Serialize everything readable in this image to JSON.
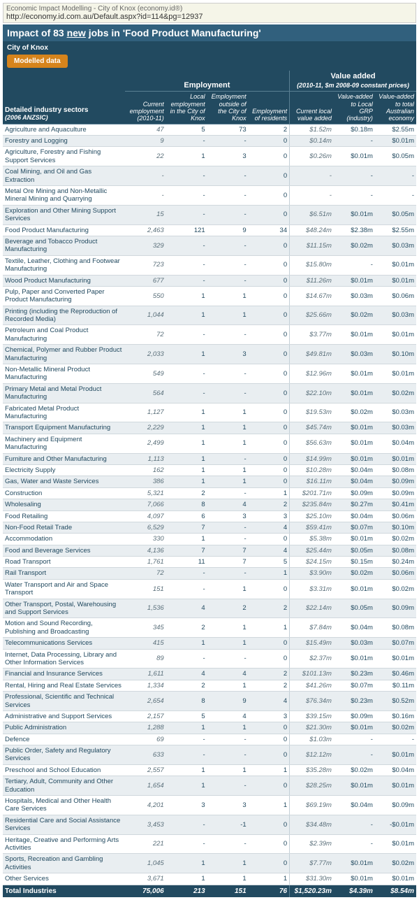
{
  "url_bar": {
    "top": "Economic Impact Modelling - City of Knox (economy.id®)",
    "url": "http://economy.id.com.au/Default.aspx?id=114&pg=12937"
  },
  "title": {
    "prefix": "Impact of ",
    "count": "83",
    "new_word": "new",
    "suffix": " jobs in 'Food Product Manufacturing'"
  },
  "city_label": "City of Knox",
  "modelled_label": "Modelled data",
  "colors": {
    "header_bg": "#224a60",
    "accent": "#d6841c",
    "row_alt": "#e9eef1"
  },
  "headers": {
    "sector": "Detailed industry sectors",
    "sector_sub": "(2006 ANZSIC)",
    "emp_group": "Employment",
    "val_group": "Value added",
    "val_group_sub": "(2010-11, $m 2008-09 constant prices)",
    "cols": [
      "Current employment (2010-11)",
      "Local employment in the City of Knox",
      "Employment outside of the City of Knox",
      "Employment of residents",
      "Current local value added",
      "Value-added to Local GRP (industry)",
      "Value-added to total Australian economy"
    ]
  },
  "totals": {
    "label": "Total Industries",
    "cells": [
      "75,006",
      "213",
      "151",
      "76",
      "$1,520.23m",
      "$4.39m",
      "$8.54m"
    ]
  },
  "rows": [
    {
      "sector": "Agriculture and Aquaculture",
      "c": [
        "47",
        "5",
        "73",
        "2",
        "$1.52m",
        "$0.18m",
        "$2.55m"
      ]
    },
    {
      "sector": "Forestry and Logging",
      "c": [
        "9",
        "-",
        "-",
        "0",
        "$0.14m",
        "-",
        "$0.01m"
      ]
    },
    {
      "sector": "Agriculture, Forestry and Fishing Support Services",
      "c": [
        "22",
        "1",
        "3",
        "0",
        "$0.26m",
        "$0.01m",
        "$0.05m"
      ]
    },
    {
      "sector": "Coal Mining, and Oil and Gas Extraction",
      "c": [
        "-",
        "-",
        "-",
        "0",
        "-",
        "-",
        "-"
      ]
    },
    {
      "sector": "Metal Ore Mining and Non-Metallic Mineral Mining and Quarrying",
      "c": [
        "-",
        "-",
        "-",
        "0",
        "-",
        "-",
        "-"
      ]
    },
    {
      "sector": "Exploration and Other Mining Support Services",
      "c": [
        "15",
        "-",
        "-",
        "0",
        "$6.51m",
        "$0.01m",
        "$0.05m"
      ]
    },
    {
      "sector": "Food Product Manufacturing",
      "c": [
        "2,463",
        "121",
        "9",
        "34",
        "$48.24m",
        "$2.38m",
        "$2.55m"
      ]
    },
    {
      "sector": "Beverage and Tobacco Product Manufacturing",
      "c": [
        "329",
        "-",
        "-",
        "0",
        "$11.15m",
        "$0.02m",
        "$0.03m"
      ]
    },
    {
      "sector": "Textile, Leather, Clothing and Footwear Manufacturing",
      "c": [
        "723",
        "-",
        "-",
        "0",
        "$15.80m",
        "-",
        "$0.01m"
      ]
    },
    {
      "sector": "Wood Product Manufacturing",
      "c": [
        "677",
        "-",
        "-",
        "0",
        "$11.26m",
        "$0.01m",
        "$0.01m"
      ]
    },
    {
      "sector": "Pulp, Paper and Converted Paper Product Manufacturing",
      "c": [
        "550",
        "1",
        "1",
        "0",
        "$14.67m",
        "$0.03m",
        "$0.06m"
      ]
    },
    {
      "sector": "Printing (including the Reproduction of Recorded Media)",
      "c": [
        "1,044",
        "1",
        "1",
        "0",
        "$25.66m",
        "$0.02m",
        "$0.03m"
      ]
    },
    {
      "sector": "Petroleum and Coal Product Manufacturing",
      "c": [
        "72",
        "-",
        "-",
        "0",
        "$3.77m",
        "$0.01m",
        "$0.01m"
      ]
    },
    {
      "sector": "Chemical, Polymer and Rubber Product Manufacturing",
      "c": [
        "2,033",
        "1",
        "3",
        "0",
        "$49.81m",
        "$0.03m",
        "$0.10m"
      ]
    },
    {
      "sector": "Non-Metallic Mineral Product Manufacturing",
      "c": [
        "549",
        "-",
        "-",
        "0",
        "$12.96m",
        "$0.01m",
        "$0.01m"
      ]
    },
    {
      "sector": "Primary Metal and Metal Product Manufacturing",
      "c": [
        "564",
        "-",
        "-",
        "0",
        "$22.10m",
        "$0.01m",
        "$0.02m"
      ]
    },
    {
      "sector": "Fabricated Metal Product Manufacturing",
      "c": [
        "1,127",
        "1",
        "1",
        "0",
        "$19.53m",
        "$0.02m",
        "$0.03m"
      ]
    },
    {
      "sector": "Transport Equipment Manufacturing",
      "c": [
        "2,229",
        "1",
        "1",
        "0",
        "$45.74m",
        "$0.01m",
        "$0.03m"
      ]
    },
    {
      "sector": "Machinery and Equipment Manufacturing",
      "c": [
        "2,499",
        "1",
        "1",
        "0",
        "$56.63m",
        "$0.01m",
        "$0.04m"
      ]
    },
    {
      "sector": "Furniture and Other Manufacturing",
      "c": [
        "1,113",
        "1",
        "-",
        "0",
        "$14.99m",
        "$0.01m",
        "$0.01m"
      ]
    },
    {
      "sector": "Electricity Supply",
      "c": [
        "162",
        "1",
        "1",
        "0",
        "$10.28m",
        "$0.04m",
        "$0.08m"
      ]
    },
    {
      "sector": "Gas, Water and Waste Services",
      "c": [
        "386",
        "1",
        "1",
        "0",
        "$16.11m",
        "$0.04m",
        "$0.09m"
      ]
    },
    {
      "sector": "Construction",
      "c": [
        "5,321",
        "2",
        "-",
        "1",
        "$201.71m",
        "$0.09m",
        "$0.09m"
      ]
    },
    {
      "sector": "Wholesaling",
      "c": [
        "7,066",
        "8",
        "4",
        "2",
        "$235.84m",
        "$0.27m",
        "$0.41m"
      ]
    },
    {
      "sector": "Food Retailing",
      "c": [
        "4,097",
        "6",
        "3",
        "3",
        "$25.10m",
        "$0.04m",
        "$0.06m"
      ]
    },
    {
      "sector": "Non-Food Retail Trade",
      "c": [
        "6,529",
        "7",
        "-",
        "4",
        "$59.41m",
        "$0.07m",
        "$0.10m"
      ]
    },
    {
      "sector": "Accommodation",
      "c": [
        "330",
        "1",
        "-",
        "0",
        "$5.38m",
        "$0.01m",
        "$0.02m"
      ]
    },
    {
      "sector": "Food and Beverage Services",
      "c": [
        "4,136",
        "7",
        "7",
        "4",
        "$25.44m",
        "$0.05m",
        "$0.08m"
      ]
    },
    {
      "sector": "Road Transport",
      "c": [
        "1,761",
        "11",
        "7",
        "5",
        "$24.15m",
        "$0.15m",
        "$0.24m"
      ]
    },
    {
      "sector": "Rail Transport",
      "c": [
        "72",
        "-",
        "-",
        "1",
        "$3.90m",
        "$0.02m",
        "$0.06m"
      ]
    },
    {
      "sector": "Water Transport and Air and Space Transport",
      "c": [
        "151",
        "-",
        "1",
        "0",
        "$3.31m",
        "$0.01m",
        "$0.02m"
      ]
    },
    {
      "sector": "Other Transport, Postal, Warehousing and Support Services",
      "c": [
        "1,536",
        "4",
        "2",
        "2",
        "$22.14m",
        "$0.05m",
        "$0.09m"
      ]
    },
    {
      "sector": "Motion and Sound Recording, Publishing and Broadcasting",
      "c": [
        "345",
        "2",
        "1",
        "1",
        "$7.84m",
        "$0.04m",
        "$0.08m"
      ]
    },
    {
      "sector": "Telecommunications Services",
      "c": [
        "415",
        "1",
        "1",
        "0",
        "$15.49m",
        "$0.03m",
        "$0.07m"
      ]
    },
    {
      "sector": "Internet, Data Processing, Library and Other Information Services",
      "c": [
        "89",
        "-",
        "-",
        "0",
        "$2.37m",
        "$0.01m",
        "$0.01m"
      ]
    },
    {
      "sector": "Financial and Insurance Services",
      "c": [
        "1,611",
        "4",
        "4",
        "2",
        "$101.13m",
        "$0.23m",
        "$0.46m"
      ]
    },
    {
      "sector": "Rental, Hiring and Real Estate Services",
      "c": [
        "1,334",
        "2",
        "1",
        "2",
        "$41.26m",
        "$0.07m",
        "$0.11m"
      ]
    },
    {
      "sector": "Professional, Scientific and Technical Services",
      "c": [
        "2,654",
        "8",
        "9",
        "4",
        "$76.34m",
        "$0.23m",
        "$0.52m"
      ]
    },
    {
      "sector": "Administrative and Support Services",
      "c": [
        "2,157",
        "5",
        "4",
        "3",
        "$39.15m",
        "$0.09m",
        "$0.16m"
      ]
    },
    {
      "sector": "Public Administration",
      "c": [
        "1,288",
        "1",
        "1",
        "0",
        "$21.30m",
        "$0.01m",
        "$0.02m"
      ]
    },
    {
      "sector": "Defence",
      "c": [
        "69",
        "-",
        "-",
        "0",
        "$1.03m",
        "-",
        "-"
      ]
    },
    {
      "sector": "Public Order, Safety and Regulatory Services",
      "c": [
        "633",
        "-",
        "-",
        "0",
        "$12.12m",
        "-",
        "$0.01m"
      ]
    },
    {
      "sector": "Preschool and School Education",
      "c": [
        "2,557",
        "1",
        "1",
        "1",
        "$35.28m",
        "$0.02m",
        "$0.04m"
      ]
    },
    {
      "sector": "Tertiary, Adult, Community and Other Education",
      "c": [
        "1,654",
        "1",
        "-",
        "0",
        "$28.25m",
        "$0.01m",
        "$0.01m"
      ]
    },
    {
      "sector": "Hospitals, Medical and Other Health Care Services",
      "c": [
        "4,201",
        "3",
        "3",
        "1",
        "$69.19m",
        "$0.04m",
        "$0.09m"
      ]
    },
    {
      "sector": "Residential Care and Social Assistance Services",
      "c": [
        "3,453",
        "-",
        "-1",
        "0",
        "$34.48m",
        "-",
        "-$0.01m"
      ]
    },
    {
      "sector": "Heritage, Creative and Performing Arts Activities",
      "c": [
        "221",
        "-",
        "-",
        "0",
        "$2.39m",
        "-",
        "$0.01m"
      ]
    },
    {
      "sector": "Sports, Recreation and Gambling Activities",
      "c": [
        "1,045",
        "1",
        "1",
        "0",
        "$7.77m",
        "$0.01m",
        "$0.02m"
      ]
    },
    {
      "sector": "Other Services",
      "c": [
        "3,671",
        "1",
        "1",
        "1",
        "$31.30m",
        "$0.01m",
        "$0.01m"
      ]
    }
  ]
}
